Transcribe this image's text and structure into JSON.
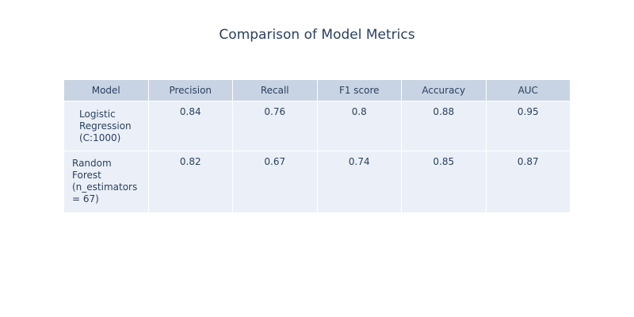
{
  "chart_data": {
    "type": "table",
    "title": "Comparison of Model Metrics",
    "columns": [
      "Model",
      "Precision",
      "Recall",
      "F1 score",
      "Accuracy",
      "AUC"
    ],
    "rows": [
      {
        "model": "Logistic\nRegression\n(C:1000)",
        "precision": "0.84",
        "recall": "0.76",
        "f1": "0.8",
        "accuracy": "0.88",
        "auc": "0.95"
      },
      {
        "model": "Random\nForest\n(n_estimators\n= 67)",
        "precision": "0.82",
        "recall": "0.67",
        "f1": "0.74",
        "accuracy": "0.85",
        "auc": "0.87"
      }
    ],
    "colors": {
      "header_fill": "#c8d4e3",
      "cell_fill": "#ebf0f8",
      "text": "#2a3f5f",
      "border": "#ffffff"
    }
  }
}
